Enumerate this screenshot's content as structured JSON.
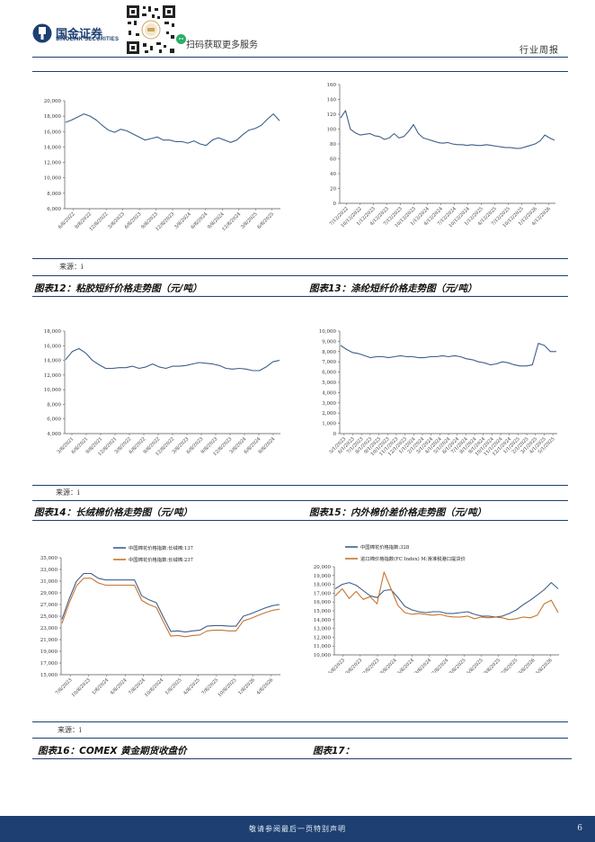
{
  "header": {
    "logo_cn": "国金证券",
    "logo_en": "SINOLINK SECURITIES",
    "scan_text": "扫码获取更多服务",
    "category": "行业周报"
  },
  "sources": [
    "来源：i",
    "来源：i",
    "来源：i"
  ],
  "figures": [
    "图表12：粘胶短纤价格走势图（元/吨）",
    "图表13：涤纶短纤价格走势图（元/吨）",
    "图表14：长绒棉价格走势图（元/吨）",
    "图表15：内外棉价差价格走势图（元/吨）",
    "图表16：COMEX 黄金期货收盘价",
    "图表17："
  ],
  "footer": {
    "disclaimer": "敬请参阅最后一页特别声明",
    "page": "6"
  },
  "colors": {
    "brand": "#1d3f72",
    "series_blue": "#3e5f8a",
    "series_orange": "#c8742e"
  },
  "chart_data": [
    {
      "type": "line",
      "xticks": [
        "6/8/2022",
        "9/8/2022",
        "12/8/2022",
        "3/8/2023",
        "6/8/2023",
        "9/8/2023",
        "12/8/2023",
        "3/8/2024",
        "6/8/2024",
        "9/8/2024",
        "12/8/2024",
        "3/8/2025",
        "6/8/2025"
      ],
      "yticks": [
        "6,000",
        "8,000",
        "10,000",
        "12,000",
        "14,000",
        "16,000",
        "18,000",
        "20,000"
      ],
      "ylim": [
        6000,
        20000
      ],
      "series": [
        {
          "color": "#3e5f8a",
          "values": [
            17200,
            17500,
            17900,
            18300,
            18000,
            17500,
            16800,
            16200,
            15900,
            16300,
            16100,
            15700,
            15300,
            14900,
            15100,
            15300,
            14900,
            14900,
            14700,
            14700,
            14500,
            14800,
            14400,
            14200,
            14900,
            15200,
            14900,
            14600,
            14900,
            15600,
            16200,
            16400,
            16800,
            17600,
            18300,
            17400
          ]
        }
      ]
    },
    {
      "type": "line",
      "xticks": [
        "7/12/2022",
        "10/12/2022",
        "1/12/2023",
        "4/12/2023",
        "7/12/2023",
        "10/12/2023",
        "1/12/2024",
        "4/12/2024",
        "7/12/2024",
        "10/12/2024",
        "1/12/2025",
        "4/12/2025",
        "7/12/2025",
        "10/12/2025",
        "1/12/2026",
        "4/12/2026"
      ],
      "yticks": [
        "0",
        "20",
        "40",
        "60",
        "80",
        "100",
        "120",
        "140",
        "160"
      ],
      "ylim": [
        0,
        160
      ],
      "series": [
        {
          "color": "#3e5f8a",
          "values": [
            115,
            125,
            100,
            95,
            92,
            93,
            94,
            91,
            90,
            86,
            88,
            94,
            88,
            90,
            97,
            106,
            94,
            88,
            86,
            84,
            82,
            81,
            82,
            80,
            79,
            79,
            78,
            79,
            78,
            78,
            79,
            78,
            77,
            76,
            75,
            75,
            74,
            74,
            76,
            78,
            80,
            84,
            92,
            88,
            85
          ]
        }
      ]
    },
    {
      "type": "line",
      "xticks": [
        "3/8/2021",
        "6/8/2021",
        "9/8/2021",
        "12/8/2021",
        "3/8/2022",
        "6/8/2022",
        "9/8/2022",
        "12/8/2022",
        "3/8/2023",
        "6/8/2023",
        "9/8/2023",
        "12/8/2023",
        "3/8/2024",
        "6/8/2024",
        "9/8/2024"
      ],
      "yticks": [
        "4,000",
        "6,000",
        "8,000",
        "10,000",
        "12,000",
        "14,000",
        "16,000",
        "18,000"
      ],
      "ylim": [
        4000,
        18000
      ],
      "series": [
        {
          "color": "#3e5f8a",
          "values": [
            14100,
            15200,
            15600,
            15000,
            14000,
            13400,
            12900,
            12900,
            13000,
            13000,
            13200,
            12900,
            13100,
            13500,
            13100,
            12900,
            13200,
            13200,
            13300,
            13500,
            13700,
            13600,
            13500,
            13300,
            12900,
            12800,
            12900,
            12800,
            12600,
            12600,
            13100,
            13800,
            14000
          ]
        }
      ]
    },
    {
      "type": "line",
      "xticks": [
        "5/1/2023",
        "6/1/2023",
        "7/1/2023",
        "8/1/2023",
        "9/1/2023",
        "10/1/2023",
        "11/1/2023",
        "12/1/2023",
        "1/1/2024",
        "2/1/2024",
        "3/1/2024",
        "4/1/2024",
        "5/1/2024",
        "6/1/2024",
        "7/1/2024",
        "8/1/2024",
        "9/1/2024",
        "10/1/2024",
        "11/1/2024",
        "12/1/2024",
        "1/1/2025",
        "2/1/2025",
        "3/1/2025",
        "4/1/2025",
        "5/1/2025"
      ],
      "yticks": [
        "0",
        "1,000",
        "2,000",
        "3,000",
        "4,000",
        "5,000",
        "6,000",
        "7,000",
        "8,000",
        "9,000",
        "10,000"
      ],
      "ylim": [
        0,
        10000
      ],
      "series": [
        {
          "color": "#3e5f8a",
          "values": [
            8600,
            8200,
            7900,
            7800,
            7600,
            7400,
            7500,
            7500,
            7400,
            7500,
            7600,
            7500,
            7500,
            7400,
            7400,
            7500,
            7500,
            7600,
            7500,
            7600,
            7500,
            7300,
            7200,
            7000,
            6900,
            6700,
            6800,
            7000,
            6900,
            6700,
            6600,
            6600,
            6700,
            8800,
            8600,
            8000,
            8000
          ]
        }
      ]
    },
    {
      "type": "line",
      "xticks": [
        "7/8/2023",
        "10/8/2023",
        "1/8/2024",
        "4/8/2024",
        "7/8/2024",
        "10/8/2024",
        "1/8/2025",
        "4/8/2025",
        "7/8/2025",
        "10/8/2025",
        "1/8/2026",
        "4/8/2026"
      ],
      "yticks": [
        "15,000",
        "17,000",
        "19,000",
        "21,000",
        "23,000",
        "25,000",
        "27,000",
        "29,000",
        "31,000",
        "33,000",
        "35,000"
      ],
      "ylim": [
        15000,
        35000
      ],
      "series": [
        {
          "name": "中国棉花价格指数:长绒棉:137",
          "color": "#3e5f8a",
          "values": [
            24500,
            28000,
            31000,
            32300,
            32300,
            31500,
            31200,
            31200,
            31200,
            31200,
            31200,
            28500,
            27800,
            27300,
            24800,
            22400,
            22500,
            22300,
            22500,
            22600,
            23300,
            23400,
            23400,
            23300,
            23300,
            25000,
            25400,
            25900,
            26400,
            26800,
            27000
          ]
        },
        {
          "name": "中国棉花价格指数:长绒棉:237",
          "color": "#c8742e",
          "values": [
            23800,
            27300,
            30200,
            31500,
            31500,
            30700,
            30300,
            30300,
            30300,
            30300,
            30300,
            27700,
            27000,
            26500,
            24000,
            21600,
            21700,
            21500,
            21700,
            21800,
            22500,
            22600,
            22600,
            22500,
            22500,
            24200,
            24600,
            25100,
            25600,
            26000,
            26200
          ]
        }
      ]
    },
    {
      "type": "line",
      "xticks": [
        "6/8/2023",
        "9/8/2023",
        "12/8/2023",
        "3/8/2024",
        "6/8/2024",
        "9/8/2024",
        "12/8/2024",
        "3/8/2025",
        "6/8/2025",
        "9/8/2025",
        "12/8/2025",
        "3/8/2026",
        "6/8/2026"
      ],
      "yticks": [
        "10,000",
        "11,000",
        "12,000",
        "13,000",
        "14,000",
        "15,000",
        "16,000",
        "17,000",
        "18,000",
        "19,000",
        "20,000"
      ],
      "ylim": [
        10000,
        20000
      ],
      "series": [
        {
          "name": "中国棉花价格指数:328",
          "color": "#3e5f8a",
          "values": [
            17500,
            18000,
            18200,
            17900,
            17300,
            16700,
            16500,
            17300,
            17400,
            16500,
            15500,
            15100,
            14900,
            14800,
            14900,
            14900,
            14700,
            14700,
            14800,
            14900,
            14600,
            14400,
            14400,
            14300,
            14400,
            14700,
            15100,
            15700,
            16200,
            16800,
            17400,
            18200,
            17500
          ]
        },
        {
          "name": "进口棉价格指数(FC Index) M:滑准税港口提货价",
          "color": "#c8742e",
          "values": [
            16700,
            17500,
            16400,
            17200,
            16300,
            16600,
            15800,
            19400,
            17500,
            15600,
            14800,
            14600,
            14700,
            14600,
            14500,
            14600,
            14400,
            14300,
            14300,
            14400,
            14100,
            14300,
            14200,
            14300,
            14200,
            14000,
            14100,
            14300,
            14200,
            14500,
            15800,
            16200,
            14800
          ]
        }
      ]
    }
  ]
}
